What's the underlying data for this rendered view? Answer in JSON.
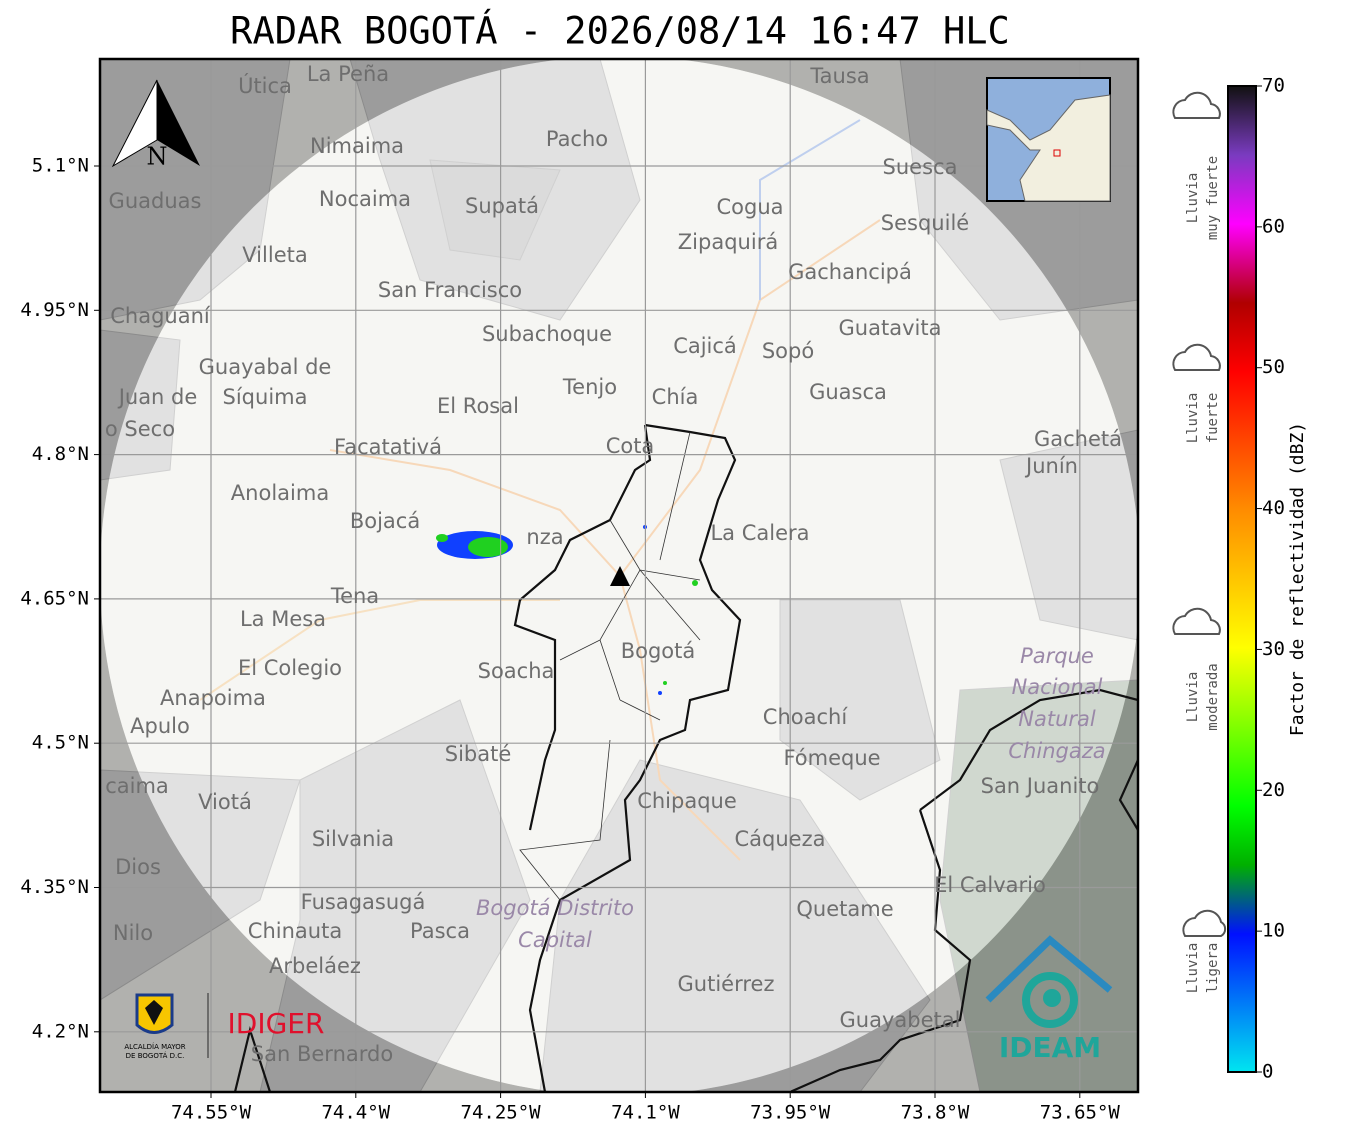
{
  "title": "RADAR BOGOTÁ - 2026/08/14 16:47 HLC",
  "map": {
    "lon_ticks": [
      {
        "value": -74.55,
        "label": "74.55°W"
      },
      {
        "value": -74.4,
        "label": "74.4°W"
      },
      {
        "value": -74.25,
        "label": "74.25°W"
      },
      {
        "value": -74.1,
        "label": "74.1°W"
      },
      {
        "value": -73.95,
        "label": "73.95°W"
      },
      {
        "value": -73.8,
        "label": "73.8°W"
      },
      {
        "value": -73.65,
        "label": "73.65°W"
      }
    ],
    "lat_ticks": [
      {
        "value": 5.1,
        "label": "5.1°N"
      },
      {
        "value": 4.95,
        "label": "4.95°N"
      },
      {
        "value": 4.8,
        "label": "4.8°N"
      },
      {
        "value": 4.65,
        "label": "4.65°N"
      },
      {
        "value": 4.5,
        "label": "4.5°N"
      },
      {
        "value": 4.35,
        "label": "4.35°N"
      },
      {
        "value": 4.2,
        "label": "4.2°N"
      }
    ],
    "north": "N",
    "places": [
      "La Peña",
      "Útica",
      "Tausa",
      "Pacho",
      "Nimaima",
      "Suesca",
      "Guaduas",
      "Nocaima",
      "Supatá",
      "Cogua",
      "Sesquilé",
      "Zipaquirá",
      "Villeta",
      "Gachancipá",
      "San Francisco",
      "Chaguaní",
      "Guatavita",
      "Subachoque",
      "Cajicá",
      "Sopó",
      "Guayabal de",
      "Síquima",
      "Juan de",
      "o Seco",
      "Tenjo",
      "Chía",
      "Guasca",
      "El Rosal",
      "Gachetá",
      "Junín",
      "Facatativá",
      "Cota",
      "Anolaima",
      "Bojacá",
      "nza",
      "La Calera",
      "Tena",
      "La Mesa",
      "Bogotá",
      "El Colegio",
      "Soacha",
      "Anapoima",
      "Apulo",
      "Choachí",
      "Sibaté",
      "Fómeque",
      "San Juanito",
      "caima",
      "Viotá",
      "Chipaque",
      "Silvania",
      "Cáqueza",
      "Dios",
      "El Calvario",
      "Fusagasugá",
      "Quetame",
      "Nilo",
      "Chinauta",
      "Pasca",
      "Arbeláez",
      "Gutiérrez",
      "Guayabetal",
      "San Bernardo"
    ],
    "italic_places": [
      "Parque",
      "Nacional",
      "Natural",
      "Chingaza",
      "Bogotá Distrito",
      "Capital"
    ]
  },
  "colorbar": {
    "label": "Factor de reflectividad (dBZ)",
    "lim": [
      0,
      70
    ],
    "ticks": [
      0,
      10,
      20,
      30,
      40,
      50,
      60,
      70
    ]
  },
  "intensity": [
    [
      "Lluvia",
      "muy fuerte"
    ],
    [
      "Lluvia",
      "fuerte"
    ],
    [
      "Lluvia",
      "moderada"
    ],
    [
      "Lluvia",
      "ligera"
    ]
  ],
  "logos": {
    "alcaldia": [
      "ALCALDÍA MAYOR",
      "DE BOGOTÁ D.C."
    ],
    "idiger": "IDIGER",
    "ideam": "IDEAM"
  }
}
